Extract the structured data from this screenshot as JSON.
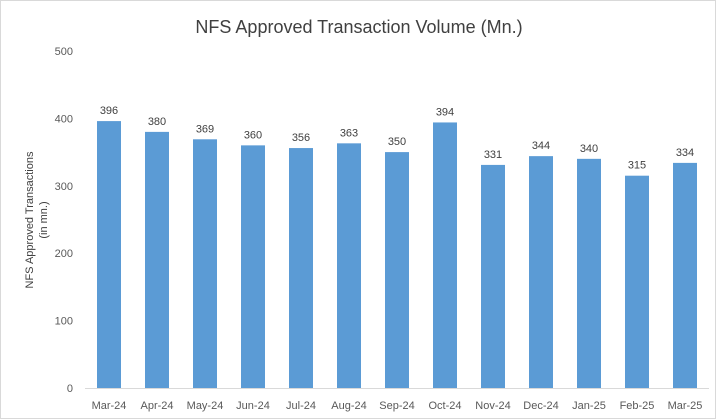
{
  "chart_data": {
    "type": "bar",
    "title": "NFS Approved Transaction Volume (Mn.)",
    "ylabel_line1": "NFS Approved Transactions",
    "ylabel_line2": "(in mn.)",
    "xlabel": "",
    "categories": [
      "Mar-24",
      "Apr-24",
      "May-24",
      "Jun-24",
      "Jul-24",
      "Aug-24",
      "Sep-24",
      "Oct-24",
      "Nov-24",
      "Dec-24",
      "Jan-25",
      "Feb-25",
      "Mar-25"
    ],
    "values": [
      396,
      380,
      369,
      360,
      356,
      363,
      350,
      394,
      331,
      344,
      340,
      315,
      334
    ],
    "ylim": [
      0,
      500
    ],
    "yticks": [
      0,
      100,
      200,
      300,
      400,
      500
    ],
    "grid": false,
    "legend": "none",
    "bar_color": "#5b9bd5",
    "data_labels": true
  }
}
